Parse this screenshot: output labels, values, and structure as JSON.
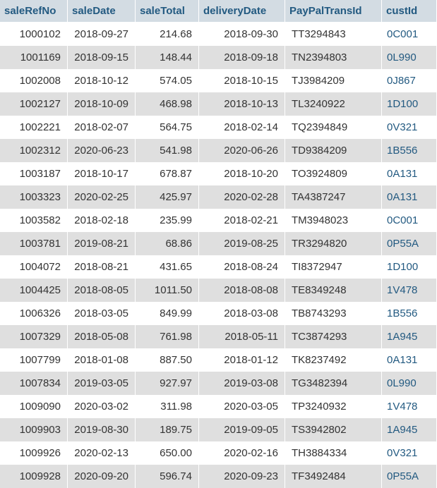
{
  "table": {
    "headers": [
      "saleRefNo",
      "saleDate",
      "saleTotal",
      "deliveryDate",
      "PayPalTransId",
      "custId"
    ],
    "rows": [
      [
        "1000102",
        "2018-09-27",
        "214.68",
        "2018-09-30",
        "TT3294843",
        "0C001"
      ],
      [
        "1001169",
        "2018-09-15",
        "148.44",
        "2018-09-18",
        "TN2394803",
        "0L990"
      ],
      [
        "1002008",
        "2018-10-12",
        "574.05",
        "2018-10-15",
        "TJ3984209",
        "0J867"
      ],
      [
        "1002127",
        "2018-10-09",
        "468.98",
        "2018-10-13",
        "TL3240922",
        "1D100"
      ],
      [
        "1002221",
        "2018-02-07",
        "564.75",
        "2018-02-14",
        "TQ2394849",
        "0V321"
      ],
      [
        "1002312",
        "2020-06-23",
        "541.98",
        "2020-06-26",
        "TD9384209",
        "1B556"
      ],
      [
        "1003187",
        "2018-10-17",
        "678.87",
        "2018-10-20",
        "TO3924809",
        "0A131"
      ],
      [
        "1003323",
        "2020-02-25",
        "425.97",
        "2020-02-28",
        "TA4387247",
        "0A131"
      ],
      [
        "1003582",
        "2018-02-18",
        "235.99",
        "2018-02-21",
        "TM3948023",
        "0C001"
      ],
      [
        "1003781",
        "2019-08-21",
        "68.86",
        "2019-08-25",
        "TR3294820",
        "0P55A"
      ],
      [
        "1004072",
        "2018-08-21",
        "431.65",
        "2018-08-24",
        "TI8372947",
        "1D100"
      ],
      [
        "1004425",
        "2018-08-05",
        "1011.50",
        "2018-08-08",
        "TE8349248",
        "1V478"
      ],
      [
        "1006326",
        "2018-03-05",
        "849.99",
        "2018-03-08",
        "TB8743293",
        "1B556"
      ],
      [
        "1007329",
        "2018-05-08",
        "761.98",
        "2018-05-11",
        "TC3874293",
        "1A945"
      ],
      [
        "1007799",
        "2018-01-08",
        "887.50",
        "2018-01-12",
        "TK8237492",
        "0A131"
      ],
      [
        "1007834",
        "2019-03-05",
        "927.97",
        "2019-03-08",
        "TG3482394",
        "0L990"
      ],
      [
        "1009090",
        "2020-03-02",
        "311.98",
        "2020-03-05",
        "TP3240932",
        "1V478"
      ],
      [
        "1009903",
        "2019-08-30",
        "189.75",
        "2019-09-05",
        "TS3942802",
        "1A945"
      ],
      [
        "1009926",
        "2020-02-13",
        "650.00",
        "2020-02-16",
        "TH3884334",
        "0V321"
      ],
      [
        "1009928",
        "2020-09-20",
        "596.74",
        "2020-09-23",
        "TF3492484",
        "0P55A"
      ]
    ]
  },
  "colors": {
    "header_bg": "#d3dce3",
    "header_text": "#235a81",
    "row_even_bg": "#dfdfdf",
    "row_odd_bg": "#ffffff",
    "link_text": "#235a81"
  }
}
